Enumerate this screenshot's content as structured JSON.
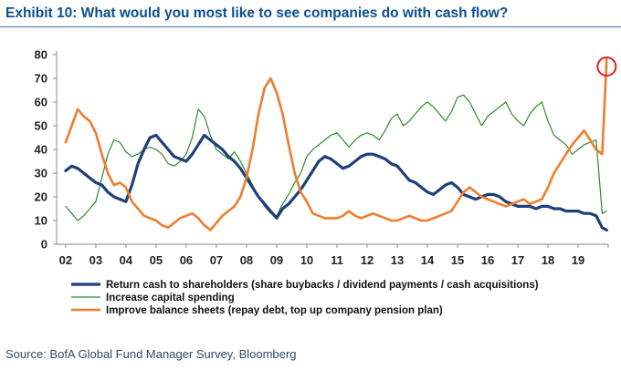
{
  "header": {
    "title": "Exhibit 10: What would you most like to see companies do with cash flow?"
  },
  "footer": {
    "source": "Source: BofA Global Fund Manager Survey, Bloomberg"
  },
  "chart_data": {
    "type": "line",
    "title": "Exhibit 10: What would you most like to see companies do with cash flow?",
    "xlabel": "",
    "ylabel": "",
    "ylim": [
      0,
      80
    ],
    "y_ticks": [
      0,
      10,
      20,
      30,
      40,
      50,
      60,
      70,
      80
    ],
    "x_range": [
      2001.7,
      2020.0
    ],
    "x_tick_labels": [
      "02",
      "03",
      "04",
      "05",
      "06",
      "07",
      "08",
      "09",
      "10",
      "11",
      "12",
      "13",
      "14",
      "15",
      "16",
      "17",
      "18",
      "19"
    ],
    "legend_position": "bottom-center",
    "grid": false,
    "annotation": "red circle highlighting latest value of Improve balance sheets (~78)",
    "series": [
      {
        "name": "Return cash to shareholders (share buybacks / dividend payments / cash acquisitions)",
        "color": "#1f3f78",
        "x": [
          2002.0,
          2002.2,
          2002.4,
          2002.6,
          2002.8,
          2003.0,
          2003.2,
          2003.4,
          2003.6,
          2003.8,
          2004.0,
          2004.2,
          2004.4,
          2004.6,
          2004.8,
          2005.0,
          2005.2,
          2005.4,
          2005.6,
          2005.8,
          2006.0,
          2006.2,
          2006.4,
          2006.6,
          2006.8,
          2007.0,
          2007.2,
          2007.4,
          2007.6,
          2007.8,
          2008.0,
          2008.2,
          2008.4,
          2008.6,
          2008.8,
          2009.0,
          2009.2,
          2009.4,
          2009.6,
          2009.8,
          2010.0,
          2010.2,
          2010.4,
          2010.6,
          2010.8,
          2011.0,
          2011.2,
          2011.4,
          2011.6,
          2011.8,
          2012.0,
          2012.2,
          2012.4,
          2012.6,
          2012.8,
          2013.0,
          2013.2,
          2013.4,
          2013.6,
          2013.8,
          2014.0,
          2014.2,
          2014.4,
          2014.6,
          2014.8,
          2015.0,
          2015.2,
          2015.4,
          2015.6,
          2015.8,
          2016.0,
          2016.2,
          2016.4,
          2016.6,
          2016.8,
          2017.0,
          2017.2,
          2017.4,
          2017.6,
          2017.8,
          2018.0,
          2018.2,
          2018.4,
          2018.6,
          2018.8,
          2019.0,
          2019.2,
          2019.4,
          2019.6,
          2019.8,
          2019.95
        ],
        "values": [
          31,
          33,
          32,
          30,
          28,
          26,
          25,
          22,
          20,
          19,
          18,
          25,
          34,
          40,
          45,
          46,
          43,
          40,
          37,
          36,
          35,
          38,
          42,
          46,
          44,
          42,
          40,
          37,
          35,
          32,
          28,
          24,
          20,
          17,
          14,
          11,
          15,
          17,
          20,
          23,
          27,
          31,
          35,
          37,
          36,
          34,
          32,
          33,
          35,
          37,
          38,
          38,
          37,
          36,
          34,
          33,
          30,
          27,
          26,
          24,
          22,
          21,
          23,
          25,
          26,
          24,
          21,
          20,
          19,
          20,
          21,
          21,
          20,
          18,
          17,
          16,
          16,
          16,
          15,
          16,
          16,
          15,
          15,
          14,
          14,
          14,
          13,
          13,
          12,
          7,
          6
        ]
      },
      {
        "name": "Increase capital spending",
        "color": "#2e8b2e",
        "x": [
          2002.0,
          2002.2,
          2002.4,
          2002.6,
          2002.8,
          2003.0,
          2003.2,
          2003.4,
          2003.6,
          2003.8,
          2004.0,
          2004.2,
          2004.4,
          2004.6,
          2004.8,
          2005.0,
          2005.2,
          2005.4,
          2005.6,
          2005.8,
          2006.0,
          2006.2,
          2006.4,
          2006.6,
          2006.8,
          2007.0,
          2007.2,
          2007.4,
          2007.6,
          2007.8,
          2008.0,
          2008.2,
          2008.4,
          2008.6,
          2008.8,
          2009.0,
          2009.2,
          2009.4,
          2009.6,
          2009.8,
          2010.0,
          2010.2,
          2010.4,
          2010.6,
          2010.8,
          2011.0,
          2011.2,
          2011.4,
          2011.6,
          2011.8,
          2012.0,
          2012.2,
          2012.4,
          2012.6,
          2012.8,
          2013.0,
          2013.2,
          2013.4,
          2013.6,
          2013.8,
          2014.0,
          2014.2,
          2014.4,
          2014.6,
          2014.8,
          2015.0,
          2015.2,
          2015.4,
          2015.6,
          2015.8,
          2016.0,
          2016.2,
          2016.4,
          2016.6,
          2016.8,
          2017.0,
          2017.2,
          2017.4,
          2017.6,
          2017.8,
          2018.0,
          2018.2,
          2018.4,
          2018.6,
          2018.8,
          2019.0,
          2019.2,
          2019.4,
          2019.6,
          2019.8,
          2019.95
        ],
        "values": [
          16,
          13,
          10,
          12,
          15,
          18,
          28,
          38,
          44,
          43,
          39,
          37,
          38,
          40,
          41,
          40,
          38,
          34,
          33,
          35,
          38,
          45,
          57,
          54,
          46,
          40,
          38,
          36,
          39,
          35,
          30,
          25,
          20,
          16,
          13,
          12,
          17,
          21,
          26,
          30,
          37,
          40,
          42,
          44,
          46,
          47,
          44,
          41,
          44,
          46,
          47,
          46,
          44,
          48,
          53,
          55,
          50,
          52,
          55,
          58,
          60,
          58,
          55,
          52,
          56,
          62,
          63,
          60,
          55,
          50,
          54,
          56,
          58,
          60,
          55,
          52,
          50,
          55,
          58,
          60,
          52,
          46,
          44,
          42,
          38,
          40,
          42,
          43,
          44,
          13,
          14
        ]
      },
      {
        "name": "Improve balance sheets (repay debt, top up company pension plan)",
        "color": "#ef7d2d",
        "x": [
          2002.0,
          2002.2,
          2002.4,
          2002.6,
          2002.8,
          2003.0,
          2003.2,
          2003.4,
          2003.6,
          2003.8,
          2004.0,
          2004.2,
          2004.4,
          2004.6,
          2004.8,
          2005.0,
          2005.2,
          2005.4,
          2005.6,
          2005.8,
          2006.0,
          2006.2,
          2006.4,
          2006.6,
          2006.8,
          2007.0,
          2007.2,
          2007.4,
          2007.6,
          2007.8,
          2008.0,
          2008.2,
          2008.4,
          2008.6,
          2008.8,
          2009.0,
          2009.2,
          2009.4,
          2009.6,
          2009.8,
          2010.0,
          2010.2,
          2010.4,
          2010.6,
          2010.8,
          2011.0,
          2011.2,
          2011.4,
          2011.6,
          2011.8,
          2012.0,
          2012.2,
          2012.4,
          2012.6,
          2012.8,
          2013.0,
          2013.2,
          2013.4,
          2013.6,
          2013.8,
          2014.0,
          2014.2,
          2014.4,
          2014.6,
          2014.8,
          2015.0,
          2015.2,
          2015.4,
          2015.6,
          2015.8,
          2016.0,
          2016.2,
          2016.4,
          2016.6,
          2016.8,
          2017.0,
          2017.2,
          2017.4,
          2017.6,
          2017.8,
          2018.0,
          2018.2,
          2018.4,
          2018.6,
          2018.8,
          2019.0,
          2019.2,
          2019.4,
          2019.6,
          2019.8,
          2019.95
        ],
        "values": [
          43,
          50,
          57,
          54,
          52,
          47,
          38,
          30,
          25,
          26,
          24,
          18,
          15,
          12,
          11,
          10,
          8,
          7,
          9,
          11,
          12,
          13,
          11,
          8,
          6,
          9,
          12,
          14,
          16,
          20,
          28,
          40,
          55,
          66,
          70,
          64,
          55,
          42,
          30,
          22,
          18,
          13,
          12,
          11,
          11,
          11,
          12,
          14,
          12,
          11,
          12,
          13,
          12,
          11,
          10,
          10,
          11,
          12,
          11,
          10,
          10,
          11,
          12,
          13,
          14,
          18,
          22,
          24,
          22,
          20,
          19,
          18,
          17,
          16,
          17,
          18,
          19,
          17,
          18,
          19,
          24,
          30,
          34,
          38,
          42,
          45,
          48,
          44,
          40,
          38,
          78
        ]
      }
    ]
  }
}
